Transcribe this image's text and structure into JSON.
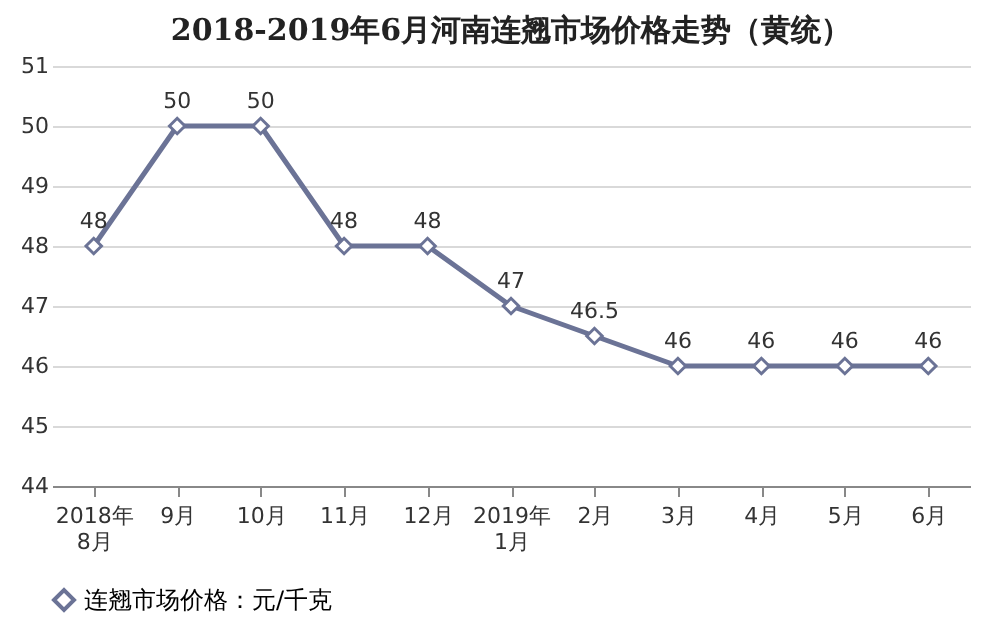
{
  "chart_data": {
    "type": "line",
    "title": "2018-2019年6月河南连翘市场价格走势（黄统）",
    "categories": [
      "2018年\n8月",
      "9月",
      "10月",
      "11月",
      "12月",
      "2019年\n1月",
      "2月",
      "3月",
      "4月",
      "5月",
      "6月"
    ],
    "series": [
      {
        "name": "连翘市场价格：元/千克",
        "color": "#6b7396",
        "values": [
          48,
          50,
          50,
          48,
          48,
          47,
          46.5,
          46,
          46,
          46,
          46
        ]
      }
    ],
    "ylim": [
      44,
      51
    ],
    "yticks": [
      44,
      45,
      46,
      47,
      48,
      49,
      50,
      51
    ],
    "grid": "y",
    "legend": "bottom",
    "marker": "diamond",
    "line_style": "solid",
    "data_labels": true
  }
}
